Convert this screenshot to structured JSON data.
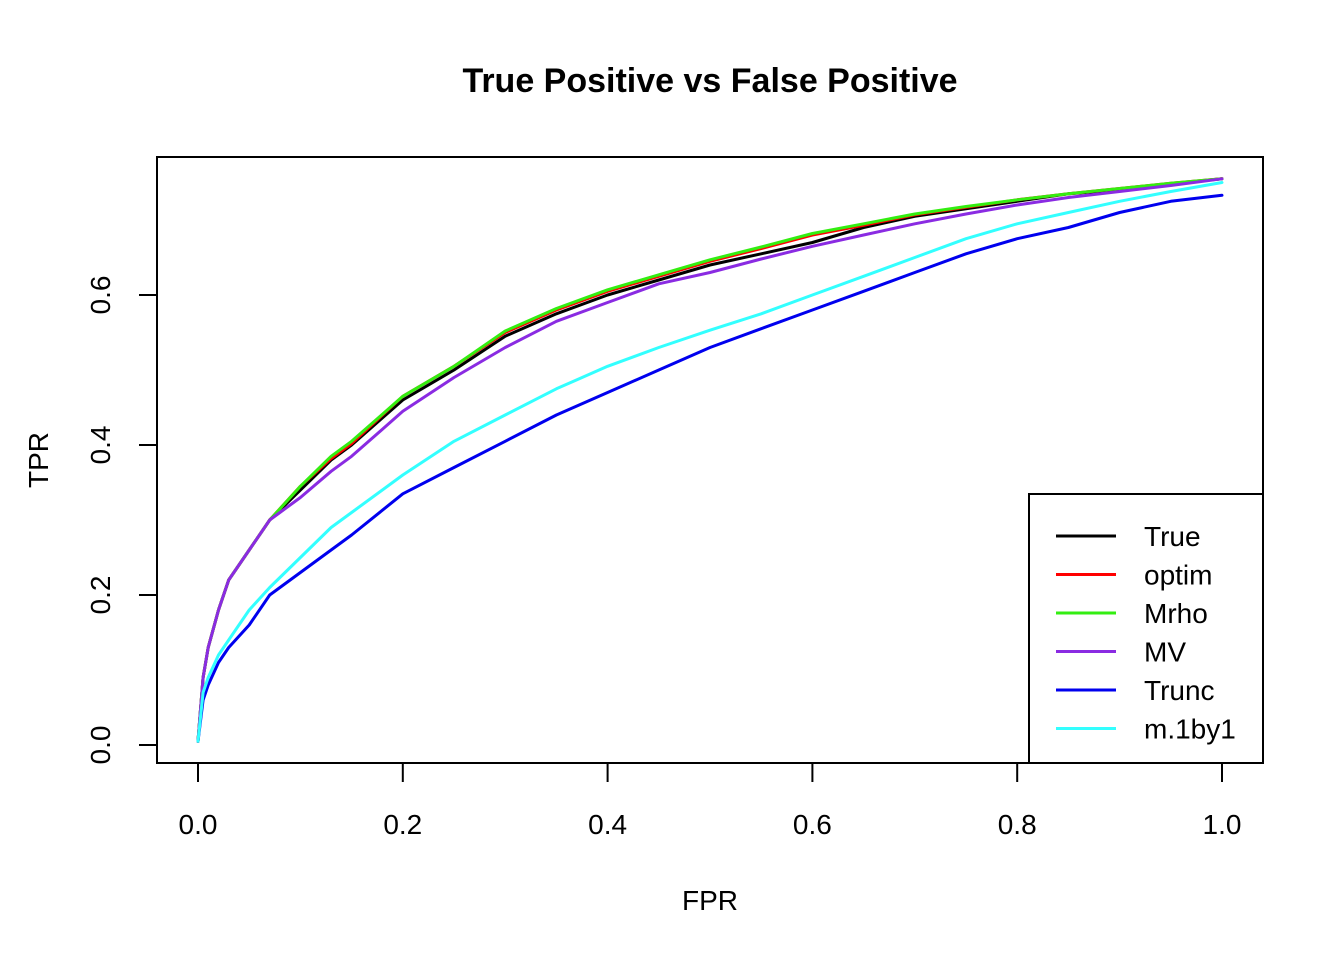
{
  "chart_data": {
    "type": "line",
    "title": "True Positive vs False Positive",
    "xlabel": "FPR",
    "ylabel": "TPR",
    "xlim": [
      0,
      1
    ],
    "ylim": [
      0,
      0.76
    ],
    "xticks": [
      "0.0",
      "0.2",
      "0.4",
      "0.6",
      "0.8",
      "1.0"
    ],
    "yticks": [
      "0.0",
      "0.2",
      "0.4",
      "0.6"
    ],
    "legend_position": "bottom-right",
    "grid": false,
    "series": [
      {
        "name": "True",
        "color": "#000000",
        "x": [
          0,
          0.005,
          0.01,
          0.02,
          0.03,
          0.05,
          0.07,
          0.1,
          0.13,
          0.15,
          0.2,
          0.25,
          0.3,
          0.35,
          0.4,
          0.45,
          0.5,
          0.55,
          0.6,
          0.65,
          0.7,
          0.75,
          0.8,
          0.85,
          0.9,
          0.95,
          1.0
        ],
        "y": [
          0.005,
          0.09,
          0.13,
          0.18,
          0.22,
          0.26,
          0.3,
          0.34,
          0.38,
          0.4,
          0.46,
          0.5,
          0.545,
          0.575,
          0.6,
          0.62,
          0.64,
          0.655,
          0.67,
          0.69,
          0.705,
          0.715,
          0.725,
          0.735,
          0.74,
          0.748,
          0.755
        ]
      },
      {
        "name": "optim",
        "color": "#ff0000",
        "x": [
          0,
          0.005,
          0.01,
          0.02,
          0.03,
          0.05,
          0.07,
          0.1,
          0.13,
          0.15,
          0.2,
          0.25,
          0.3,
          0.35,
          0.4,
          0.45,
          0.5,
          0.55,
          0.6,
          0.65,
          0.7,
          0.75,
          0.8,
          0.85,
          0.9,
          0.95,
          1.0
        ],
        "y": [
          0.005,
          0.09,
          0.13,
          0.18,
          0.22,
          0.26,
          0.3,
          0.345,
          0.382,
          0.402,
          0.465,
          0.505,
          0.55,
          0.58,
          0.605,
          0.625,
          0.645,
          0.662,
          0.68,
          0.693,
          0.707,
          0.717,
          0.727,
          0.735,
          0.742,
          0.749,
          0.755
        ]
      },
      {
        "name": "Mrho",
        "color": "#33ee11",
        "x": [
          0,
          0.005,
          0.01,
          0.02,
          0.03,
          0.05,
          0.07,
          0.1,
          0.13,
          0.15,
          0.2,
          0.25,
          0.3,
          0.35,
          0.4,
          0.45,
          0.5,
          0.55,
          0.6,
          0.65,
          0.7,
          0.75,
          0.8,
          0.85,
          0.9,
          0.95,
          1.0
        ],
        "y": [
          0.005,
          0.09,
          0.13,
          0.18,
          0.22,
          0.26,
          0.3,
          0.345,
          0.385,
          0.405,
          0.465,
          0.505,
          0.552,
          0.582,
          0.607,
          0.627,
          0.647,
          0.664,
          0.682,
          0.695,
          0.708,
          0.718,
          0.727,
          0.735,
          0.742,
          0.749,
          0.755
        ]
      },
      {
        "name": "MV",
        "color": "#8a2be2",
        "x": [
          0,
          0.005,
          0.01,
          0.02,
          0.03,
          0.05,
          0.07,
          0.08,
          0.1,
          0.13,
          0.15,
          0.2,
          0.25,
          0.3,
          0.35,
          0.4,
          0.45,
          0.5,
          0.55,
          0.6,
          0.65,
          0.7,
          0.75,
          0.8,
          0.85,
          0.9,
          0.95,
          1.0
        ],
        "y": [
          0.005,
          0.09,
          0.13,
          0.18,
          0.22,
          0.26,
          0.3,
          0.31,
          0.33,
          0.365,
          0.385,
          0.445,
          0.49,
          0.53,
          0.565,
          0.59,
          0.615,
          0.63,
          0.648,
          0.665,
          0.68,
          0.695,
          0.708,
          0.72,
          0.73,
          0.738,
          0.746,
          0.755
        ]
      },
      {
        "name": "Trunc",
        "color": "#0000ee",
        "x": [
          0,
          0.005,
          0.01,
          0.02,
          0.03,
          0.05,
          0.07,
          0.1,
          0.13,
          0.15,
          0.2,
          0.25,
          0.3,
          0.35,
          0.4,
          0.45,
          0.5,
          0.55,
          0.6,
          0.65,
          0.7,
          0.75,
          0.8,
          0.85,
          0.9,
          0.95,
          1.0
        ],
        "y": [
          0.005,
          0.06,
          0.08,
          0.11,
          0.13,
          0.16,
          0.2,
          0.23,
          0.26,
          0.28,
          0.335,
          0.37,
          0.405,
          0.44,
          0.47,
          0.5,
          0.53,
          0.555,
          0.58,
          0.605,
          0.63,
          0.655,
          0.675,
          0.69,
          0.71,
          0.725,
          0.733
        ]
      },
      {
        "name": "m.1by1",
        "color": "#33ffff",
        "x": [
          0,
          0.005,
          0.01,
          0.02,
          0.03,
          0.05,
          0.07,
          0.1,
          0.13,
          0.15,
          0.2,
          0.25,
          0.3,
          0.35,
          0.4,
          0.45,
          0.5,
          0.55,
          0.6,
          0.65,
          0.7,
          0.75,
          0.8,
          0.85,
          0.9,
          0.95,
          1.0
        ],
        "y": [
          0.005,
          0.07,
          0.09,
          0.12,
          0.14,
          0.18,
          0.21,
          0.25,
          0.29,
          0.31,
          0.36,
          0.405,
          0.44,
          0.475,
          0.505,
          0.53,
          0.553,
          0.575,
          0.6,
          0.625,
          0.65,
          0.675,
          0.695,
          0.71,
          0.725,
          0.738,
          0.75
        ]
      }
    ]
  }
}
